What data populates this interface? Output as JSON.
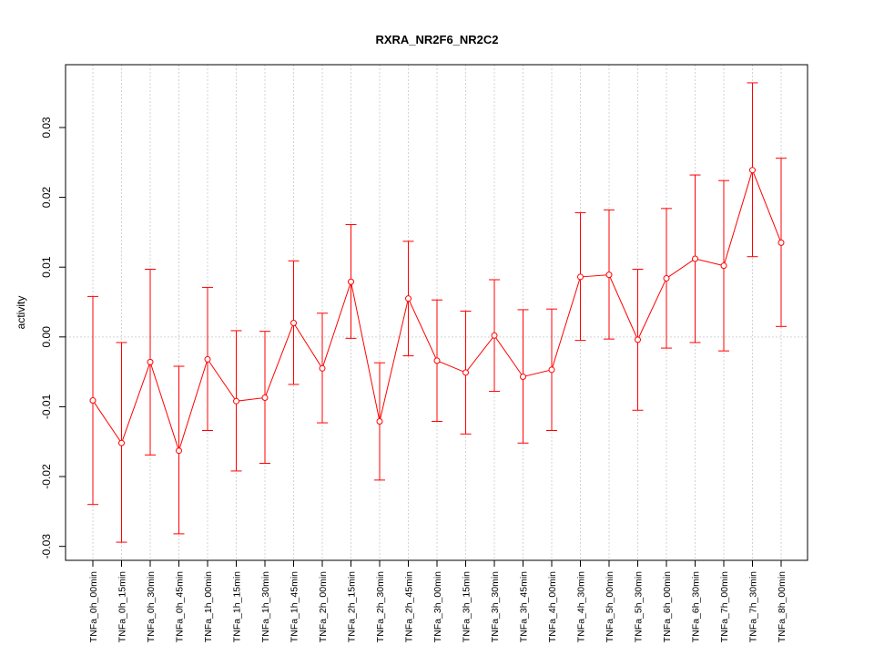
{
  "chart_data": {
    "type": "line",
    "title": "RXRA_NR2F6_NR2C2",
    "xlabel": "",
    "ylabel": "activity",
    "ylim": [
      -0.032,
      0.039
    ],
    "yticks": [
      -0.03,
      -0.02,
      -0.01,
      0.0,
      0.01,
      0.02,
      0.03
    ],
    "ytick_labels": [
      "-0.03",
      "-0.02",
      "-0.01",
      "0.00",
      "0.01",
      "0.02",
      "0.03"
    ],
    "grid": true,
    "series_color": "#ff0000",
    "categories": [
      "TNFa_0h_00min",
      "TNFa_0h_15min",
      "TNFa_0h_30min",
      "TNFa_0h_45min",
      "TNFa_1h_00min",
      "TNFa_1h_15min",
      "TNFa_1h_30min",
      "TNFa_1h_45min",
      "TNFa_2h_00min",
      "TNFa_2h_15min",
      "TNFa_2h_30min",
      "TNFa_2h_45min",
      "TNFa_3h_00min",
      "TNFa_3h_15min",
      "TNFa_3h_30min",
      "TNFa_3h_45min",
      "TNFa_4h_00min",
      "TNFa_4h_30min",
      "TNFa_5h_00min",
      "TNFa_5h_30min",
      "TNFa_6h_00min",
      "TNFa_6h_30min",
      "TNFa_7h_00min",
      "TNFa_7h_30min",
      "TNFa_8h_00min"
    ],
    "series": [
      {
        "values": [
          -0.0091,
          -0.0152,
          -0.0036,
          -0.0163,
          -0.0032,
          -0.0092,
          -0.0087,
          0.002,
          -0.0045,
          0.0079,
          -0.0121,
          0.0055,
          -0.0034,
          -0.0051,
          0.0002,
          -0.0057,
          -0.0047,
          0.0086,
          0.0089,
          -0.0004,
          0.0084,
          0.0112,
          0.0102,
          0.0239,
          0.0135
        ],
        "lower": [
          -0.024,
          -0.0294,
          -0.0169,
          -0.0282,
          -0.0134,
          -0.0192,
          -0.0181,
          -0.0068,
          -0.0123,
          -0.0002,
          -0.0205,
          -0.0027,
          -0.0121,
          -0.0139,
          -0.0078,
          -0.0152,
          -0.0134,
          -0.0005,
          -0.0003,
          -0.0105,
          -0.0016,
          -0.0008,
          -0.002,
          0.0115,
          0.0015
        ],
        "upper": [
          0.0058,
          -0.0008,
          0.0097,
          -0.0042,
          0.0071,
          0.0009,
          0.0008,
          0.0109,
          0.0034,
          0.0161,
          -0.0037,
          0.0137,
          0.0053,
          0.0037,
          0.0082,
          0.0039,
          0.004,
          0.0178,
          0.0182,
          0.0097,
          0.0184,
          0.0232,
          0.0224,
          0.0364,
          0.0256
        ]
      }
    ]
  }
}
